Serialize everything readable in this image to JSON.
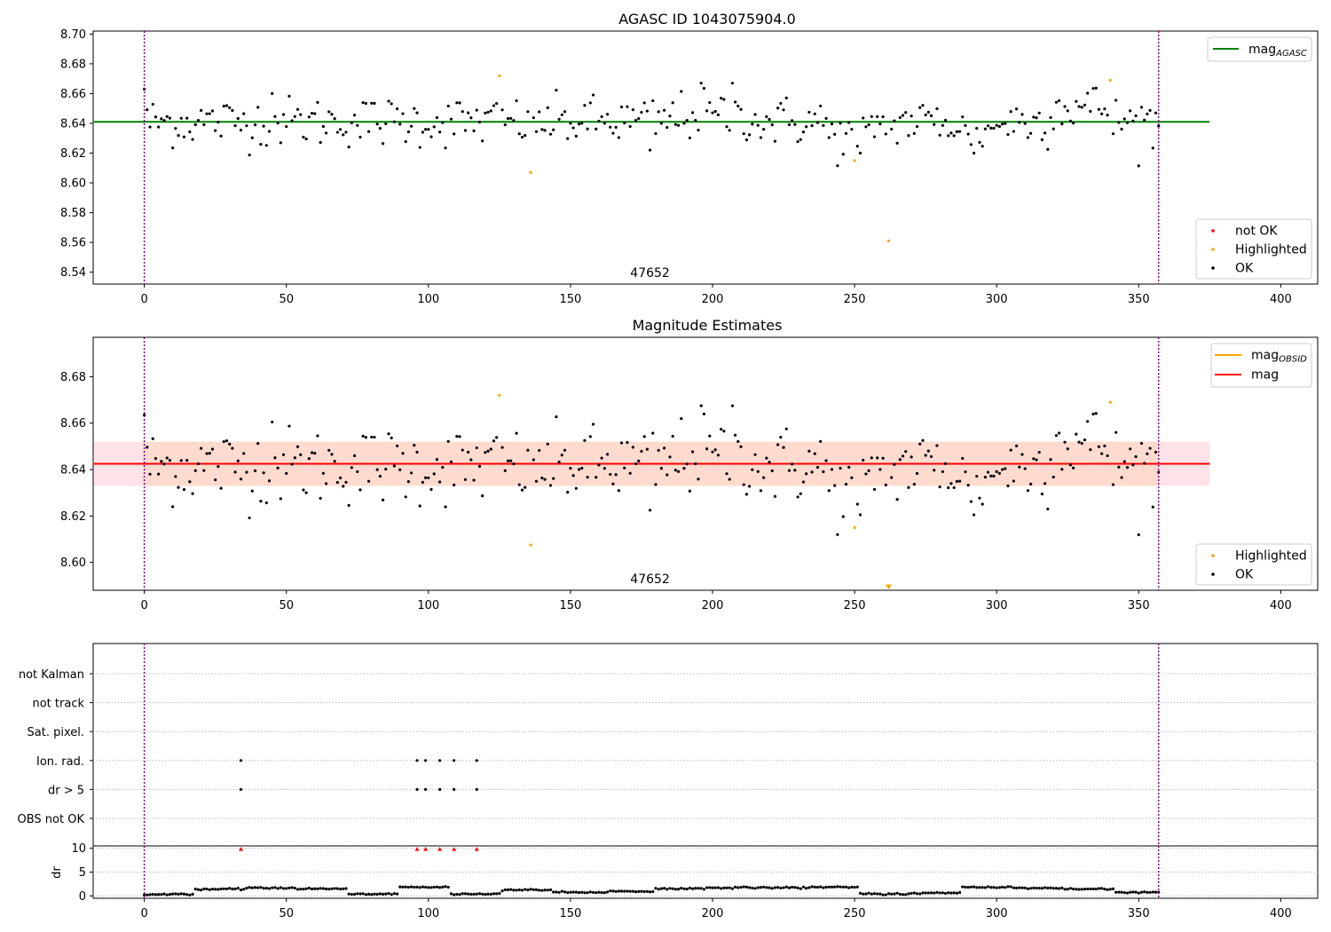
{
  "colors": {
    "ok": "#000000",
    "not_ok": "#ff0000",
    "highlighted": "#ffa500",
    "mag_agasc_line": "#008000",
    "mag_line": "#ff0000",
    "mag_obsid_line": "#ffa500",
    "band": "#ffc0cb",
    "band_overlap": "#ffd8c8",
    "vline": "#800080",
    "grid": "#bbbbbb"
  },
  "chart_data": [
    {
      "type": "scatter",
      "title": "AGASC ID 1043075904.0",
      "annotation": "47652",
      "xlim": [
        -18,
        413
      ],
      "ylim": [
        8.532,
        8.702
      ],
      "xticks": [
        0,
        50,
        100,
        150,
        200,
        250,
        300,
        350,
        400
      ],
      "yticks": [
        8.54,
        8.56,
        8.58,
        8.6,
        8.62,
        8.64,
        8.66,
        8.68,
        8.7
      ],
      "vlines": [
        0,
        357
      ],
      "hline": {
        "name": "mag",
        "subscript": "AGASC",
        "y": 8.641,
        "x_range": [
          -18,
          375
        ]
      },
      "legend_lines": [
        {
          "label": "mag",
          "subscript": "AGASC"
        }
      ],
      "legend_points": [
        "not OK",
        "Highlighted",
        "OK"
      ],
      "series": [
        {
          "name": "Highlighted",
          "points": [
            [
              125,
              8.672
            ],
            [
              136,
              8.607
            ],
            [
              250,
              8.615
            ],
            [
              262,
              8.561
            ],
            [
              340,
              8.669
            ]
          ]
        },
        {
          "name": "OK",
          "x_range": [
            0,
            357
          ]
        }
      ]
    },
    {
      "type": "scatter",
      "title": "Magnitude Estimates",
      "annotation": "47652",
      "xlim": [
        -18,
        413
      ],
      "ylim": [
        8.588,
        8.697
      ],
      "xticks": [
        0,
        50,
        100,
        150,
        200,
        250,
        300,
        350,
        400
      ],
      "yticks": [
        8.6,
        8.62,
        8.64,
        8.66,
        8.68
      ],
      "vlines": [
        0,
        357
      ],
      "hline": {
        "name": "mag",
        "y": 8.6425,
        "x_range": [
          -18,
          375
        ]
      },
      "band": {
        "y_range": [
          8.633,
          8.652
        ],
        "obsid_range": [
          8.633,
          8.652
        ]
      },
      "legend_lines": [
        {
          "label": "mag",
          "subscript": "OBSID"
        },
        {
          "label": "mag",
          "subscript": ""
        }
      ],
      "legend_points": [
        "Highlighted",
        "OK"
      ],
      "series": [
        {
          "name": "Highlighted",
          "points": [
            [
              125,
              8.672
            ],
            [
              136,
              8.6075
            ],
            [
              250,
              8.615
            ],
            [
              340,
              8.669
            ]
          ]
        },
        {
          "name": "OK",
          "x_range": [
            0,
            357
          ]
        }
      ],
      "out_of_range_marker": {
        "x": 262,
        "direction": "down"
      }
    },
    {
      "type": "scatter",
      "title": "",
      "xlim": [
        -18,
        413
      ],
      "categories": [
        "not Kalman",
        "not track",
        "Sat. pixel.",
        "Ion. rad.",
        "dr > 5",
        "OBS not OK"
      ],
      "vlines": [
        0,
        357
      ],
      "flags": {
        "Ion. rad.": [
          34,
          96,
          99,
          104,
          109,
          117
        ],
        "dr > 5": [
          34,
          96,
          99,
          104,
          109,
          117
        ]
      }
    },
    {
      "type": "scatter",
      "title": "",
      "ylabel": "dr",
      "xlim": [
        -18,
        413
      ],
      "ylim": [
        -0.5,
        10.5
      ],
      "xticks": [
        0,
        50,
        100,
        150,
        200,
        250,
        300,
        350,
        400
      ],
      "yticks": [
        0,
        5,
        10
      ],
      "vlines": [
        0,
        357
      ],
      "clipped_markers_x": [
        34,
        96,
        99,
        104,
        109,
        117
      ],
      "series": [
        {
          "name": "dr",
          "x_range": [
            0,
            357
          ]
        }
      ]
    }
  ]
}
